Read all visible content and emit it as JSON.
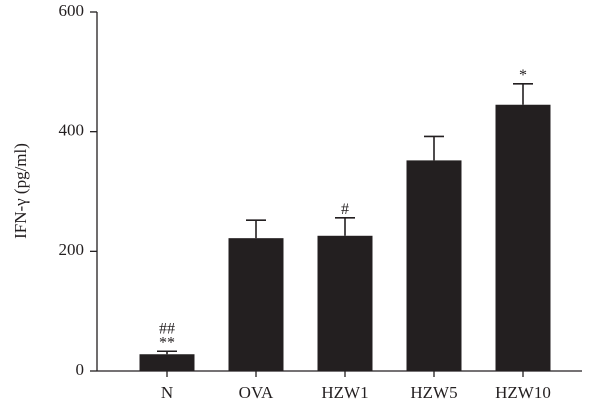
{
  "chart_data": {
    "type": "bar",
    "ylabel": "IFN-γ (pg/ml)",
    "xlabel": "",
    "ylim": [
      0,
      600
    ],
    "yticks": [
      0,
      200,
      400,
      600
    ],
    "categories": [
      "N",
      "OVA",
      "HZW1",
      "HZW5",
      "HZW10"
    ],
    "values": [
      28,
      222,
      226,
      352,
      445
    ],
    "errors": [
      5,
      30,
      30,
      40,
      35
    ],
    "annotations": [
      [
        "##",
        "**"
      ],
      [],
      [
        "#"
      ],
      [],
      [
        "*"
      ]
    ],
    "grid": false,
    "legend": "none",
    "bar_color": "#231f20"
  }
}
